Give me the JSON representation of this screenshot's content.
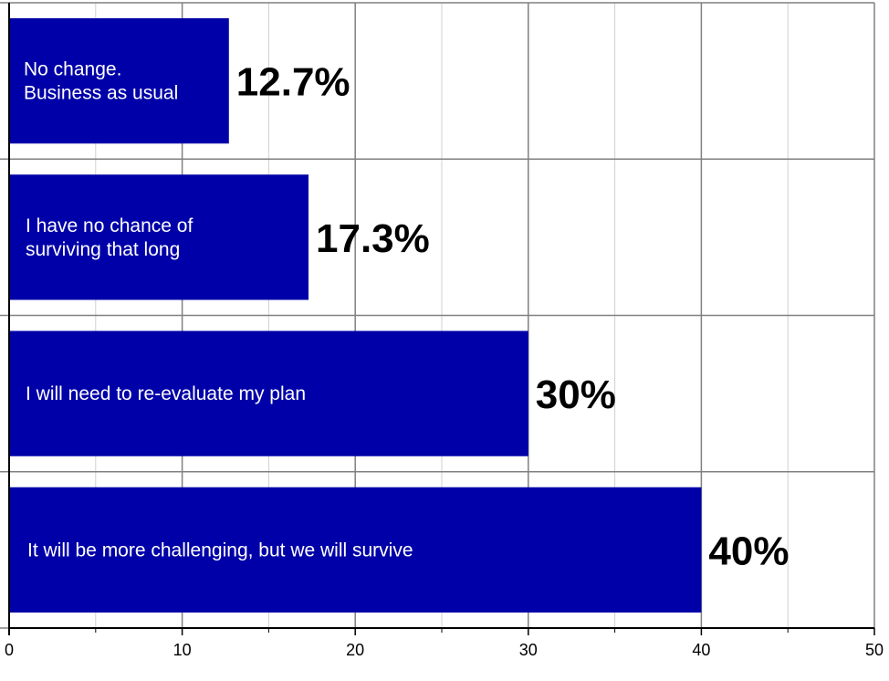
{
  "chart_data": {
    "type": "bar",
    "orientation": "horizontal",
    "categories": [
      [
        "No change.",
        "Business as usual"
      ],
      [
        "I have no chance of",
        "surviving that long"
      ],
      [
        "I will need to re-evaluate my plan"
      ],
      [
        "It will be more challenging, but we will survive"
      ]
    ],
    "values": [
      12.7,
      17.3,
      30,
      40
    ],
    "value_labels": [
      "12.7%",
      "17.3%",
      "30%",
      "40%"
    ],
    "xlim": [
      0,
      50
    ],
    "x_ticks": [
      "0",
      "10",
      "20",
      "30",
      "40",
      "50"
    ],
    "grid": true,
    "colors": {
      "bar": "#0000a8",
      "grid_major": "#808080",
      "grid_minor": "#d0d0d0"
    }
  }
}
